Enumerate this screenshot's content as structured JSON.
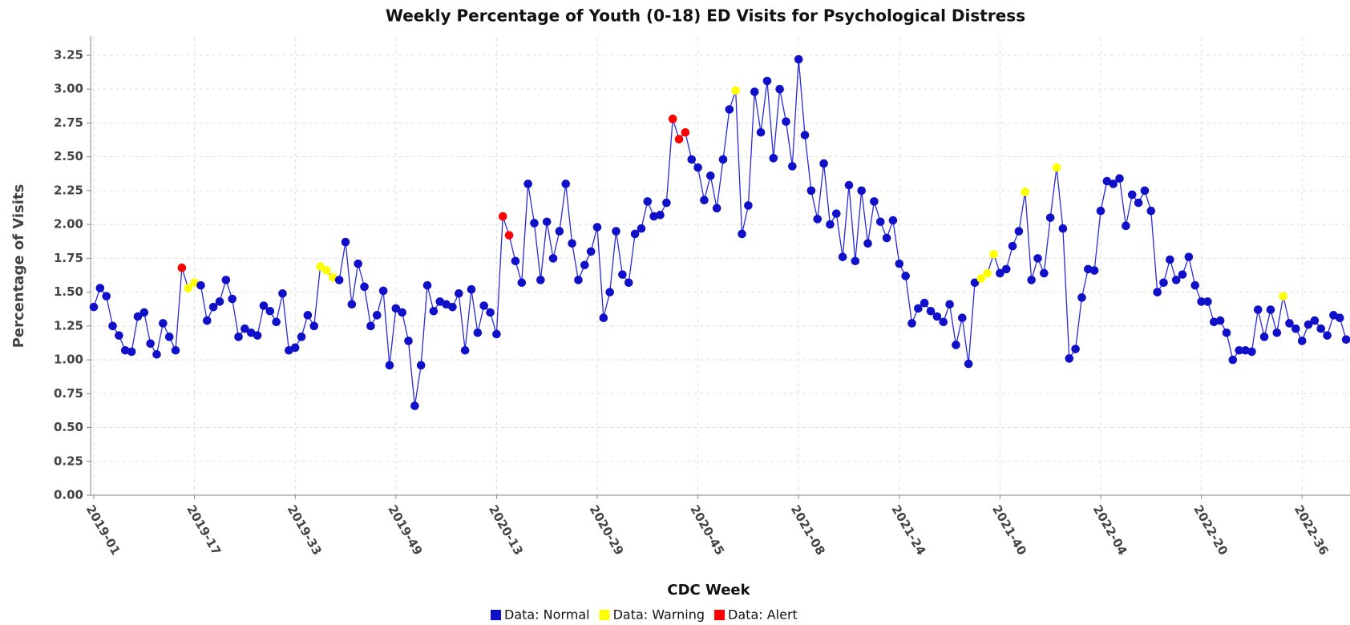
{
  "chart_data": {
    "type": "line",
    "title": "Weekly Percentage of Youth (0-18) ED Visits for Psychological Distress",
    "x_label": "CDC Week",
    "y_label": "Percentage of Visits",
    "categories": [
      "2019-01",
      null,
      null,
      null,
      null,
      null,
      null,
      null,
      null,
      null,
      null,
      null,
      null,
      null,
      null,
      null,
      "2019-17",
      null,
      null,
      null,
      null,
      null,
      null,
      null,
      null,
      null,
      null,
      null,
      null,
      null,
      null,
      null,
      "2019-33",
      null,
      null,
      null,
      null,
      null,
      null,
      null,
      null,
      null,
      null,
      null,
      null,
      null,
      null,
      null,
      "2019-49",
      null,
      null,
      null,
      null,
      null,
      null,
      null,
      null,
      null,
      null,
      null,
      null,
      null,
      null,
      null,
      "2020-13",
      null,
      null,
      null,
      null,
      null,
      null,
      null,
      null,
      null,
      null,
      null,
      null,
      null,
      null,
      null,
      "2020-29",
      null,
      null,
      null,
      null,
      null,
      null,
      null,
      null,
      null,
      null,
      null,
      null,
      null,
      null,
      null,
      "2020-45",
      null,
      null,
      null,
      null,
      null,
      null,
      null,
      null,
      null,
      null,
      null,
      null,
      null,
      null,
      null,
      "2021-08",
      null,
      null,
      null,
      null,
      null,
      null,
      null,
      null,
      null,
      null,
      null,
      null,
      null,
      null,
      null,
      "2021-24",
      null,
      null,
      null,
      null,
      null,
      null,
      null,
      null,
      null,
      null,
      null,
      null,
      null,
      null,
      null,
      "2021-40",
      null,
      null,
      null,
      null,
      null,
      null,
      null,
      null,
      null,
      null,
      null,
      null,
      null,
      null,
      null,
      "2022-04",
      null,
      null,
      null,
      null,
      null,
      null,
      null,
      null,
      null,
      null,
      null,
      null,
      null,
      null,
      null,
      "2022-20",
      null,
      null,
      null,
      null,
      null,
      null,
      null,
      null,
      null,
      null,
      null,
      null,
      null,
      null,
      null,
      "2022-36",
      null,
      null,
      null,
      null,
      null,
      null,
      null
    ],
    "series": [
      {
        "name": "Data: Normal",
        "color": "#1010c8",
        "values": [
          1.39,
          1.53,
          1.47,
          1.25,
          1.18,
          1.07,
          1.06,
          1.32,
          1.35,
          1.12,
          1.04,
          1.27,
          1.17,
          1.07,
          null,
          null,
          null,
          1.55,
          1.29,
          1.39,
          1.43,
          1.59,
          1.45,
          1.17,
          1.23,
          1.2,
          1.18,
          1.4,
          1.36,
          1.28,
          1.49,
          1.07,
          1.09,
          1.17,
          1.33,
          1.25,
          null,
          null,
          null,
          1.59,
          1.87,
          1.41,
          1.71,
          1.54,
          1.25,
          1.33,
          1.51,
          0.96,
          1.38,
          1.35,
          1.14,
          0.66,
          0.96,
          1.55,
          1.36,
          1.43,
          1.41,
          1.39,
          1.49,
          1.07,
          1.52,
          1.2,
          1.4,
          1.35,
          1.19,
          null,
          null,
          1.73,
          1.57,
          2.3,
          2.01,
          1.59,
          2.02,
          1.75,
          1.95,
          2.3,
          1.86,
          1.59,
          1.7,
          1.8,
          1.98,
          1.31,
          1.5,
          1.95,
          1.63,
          1.57,
          1.93,
          1.97,
          2.17,
          2.06,
          2.07,
          2.16,
          null,
          null,
          null,
          2.48,
          2.42,
          2.18,
          2.36,
          2.12,
          2.48,
          2.85,
          null,
          1.93,
          2.14,
          2.98,
          2.68,
          3.06,
          2.49,
          3.0,
          2.76,
          2.43,
          3.22,
          2.66,
          2.25,
          2.04,
          2.45,
          2.0,
          2.08,
          1.76,
          2.29,
          1.73,
          2.25,
          1.86,
          2.17,
          2.02,
          1.9,
          2.03,
          1.71,
          1.62,
          1.27,
          1.38,
          1.42,
          1.36,
          1.32,
          1.28,
          1.41,
          1.11,
          1.31,
          0.97,
          1.57,
          null,
          null,
          null,
          1.64,
          1.67,
          1.84,
          1.95,
          null,
          1.59,
          1.75,
          1.64,
          2.05,
          null,
          1.97,
          1.01,
          1.08,
          1.46,
          1.67,
          1.66,
          2.1,
          2.32,
          2.3,
          2.34,
          1.99,
          2.22,
          2.16,
          2.25,
          2.1,
          1.5,
          1.57,
          1.74,
          1.59,
          1.63,
          1.76,
          1.55,
          1.43,
          1.43,
          1.28,
          1.29,
          1.2,
          1.0,
          1.07,
          1.07,
          1.06,
          1.37,
          1.17,
          1.37,
          1.2,
          null,
          1.27,
          1.23,
          1.14,
          1.26,
          1.29,
          1.23,
          1.18,
          1.33,
          1.31,
          1.15
        ]
      },
      {
        "name": "Data: Warning",
        "color": "#ffff00",
        "values": [
          null,
          null,
          null,
          null,
          null,
          null,
          null,
          null,
          null,
          null,
          null,
          null,
          null,
          null,
          null,
          1.53,
          1.57,
          null,
          null,
          null,
          null,
          null,
          null,
          null,
          null,
          null,
          null,
          null,
          null,
          null,
          null,
          null,
          null,
          null,
          null,
          null,
          1.69,
          1.66,
          1.61,
          null,
          null,
          null,
          null,
          null,
          null,
          null,
          null,
          null,
          null,
          null,
          null,
          null,
          null,
          null,
          null,
          null,
          null,
          null,
          null,
          null,
          null,
          null,
          null,
          null,
          null,
          null,
          null,
          null,
          null,
          null,
          null,
          null,
          null,
          null,
          null,
          null,
          null,
          null,
          null,
          null,
          null,
          null,
          null,
          null,
          null,
          null,
          null,
          null,
          null,
          null,
          null,
          null,
          null,
          null,
          null,
          null,
          null,
          null,
          null,
          null,
          null,
          null,
          2.99,
          null,
          null,
          null,
          null,
          null,
          null,
          null,
          null,
          null,
          null,
          null,
          null,
          null,
          null,
          null,
          null,
          null,
          null,
          null,
          null,
          null,
          null,
          null,
          null,
          null,
          null,
          null,
          null,
          null,
          null,
          null,
          null,
          null,
          null,
          null,
          null,
          null,
          null,
          1.6,
          1.64,
          1.78,
          null,
          null,
          null,
          null,
          2.24,
          null,
          null,
          null,
          null,
          2.42,
          null,
          null,
          null,
          null,
          null,
          null,
          null,
          null,
          null,
          null,
          null,
          null,
          null,
          null,
          null,
          null,
          null,
          null,
          null,
          null,
          null,
          null,
          null,
          null,
          null,
          null,
          null,
          null,
          null,
          null,
          null,
          null,
          null,
          null,
          null,
          1.47,
          null,
          null,
          null,
          null,
          null,
          null,
          null,
          null,
          null,
          null
        ]
      },
      {
        "name": "Data: Alert",
        "color": "#ff0000",
        "values": [
          null,
          null,
          null,
          null,
          null,
          null,
          null,
          null,
          null,
          null,
          null,
          null,
          null,
          null,
          1.68,
          null,
          null,
          null,
          null,
          null,
          null,
          null,
          null,
          null,
          null,
          null,
          null,
          null,
          null,
          null,
          null,
          null,
          null,
          null,
          null,
          null,
          null,
          null,
          null,
          null,
          null,
          null,
          null,
          null,
          null,
          null,
          null,
          null,
          null,
          null,
          null,
          null,
          null,
          null,
          null,
          null,
          null,
          null,
          null,
          null,
          null,
          null,
          null,
          null,
          null,
          2.06,
          1.92,
          null,
          null,
          null,
          null,
          null,
          null,
          null,
          null,
          null,
          null,
          null,
          null,
          null,
          null,
          null,
          null,
          null,
          null,
          null,
          null,
          null,
          null,
          null,
          null,
          null,
          2.78,
          2.63,
          2.68,
          null,
          null,
          null,
          null,
          null,
          null,
          null,
          null,
          null,
          null,
          null,
          null,
          null,
          null,
          null,
          null,
          null,
          null,
          null,
          null,
          null,
          null,
          null,
          null,
          null,
          null,
          null,
          null,
          null,
          null,
          null,
          null,
          null,
          null,
          null,
          null,
          null,
          null,
          null,
          null,
          null,
          null,
          null,
          null,
          null,
          null,
          null,
          null,
          null,
          null,
          null,
          null,
          null,
          null,
          null,
          null,
          null,
          null,
          null,
          null,
          null,
          null,
          null,
          null,
          null,
          null,
          null,
          null,
          null,
          null,
          null,
          null,
          null,
          null,
          null,
          null,
          null,
          null,
          null,
          null,
          null,
          null,
          null,
          null,
          null,
          null,
          null,
          null,
          null,
          null,
          null,
          null,
          null,
          null,
          null,
          null,
          null,
          null,
          null,
          null,
          null,
          null,
          null,
          null,
          null
        ]
      }
    ],
    "line_color": "#2a2ad8",
    "ylim": [
      0,
      3.38
    ],
    "yticks": [
      {
        "value": 0,
        "label": "0.00"
      },
      {
        "value": 0.25,
        "label": "0.25"
      },
      {
        "value": 0.5,
        "label": "0.50"
      },
      {
        "value": 0.75,
        "label": "0.75"
      },
      {
        "value": 1,
        "label": "1.00"
      },
      {
        "value": 1.25,
        "label": "1.25"
      },
      {
        "value": 1.5,
        "label": "1.50"
      },
      {
        "value": 1.75,
        "label": "1.75"
      },
      {
        "value": 2,
        "label": "2.00"
      },
      {
        "value": 2.25,
        "label": "2.25"
      },
      {
        "value": 2.5,
        "label": "2.50"
      },
      {
        "value": 2.75,
        "label": "2.75"
      },
      {
        "value": 3,
        "label": "3.00"
      },
      {
        "value": 3.25,
        "label": "3.25"
      }
    ],
    "grid": true
  }
}
